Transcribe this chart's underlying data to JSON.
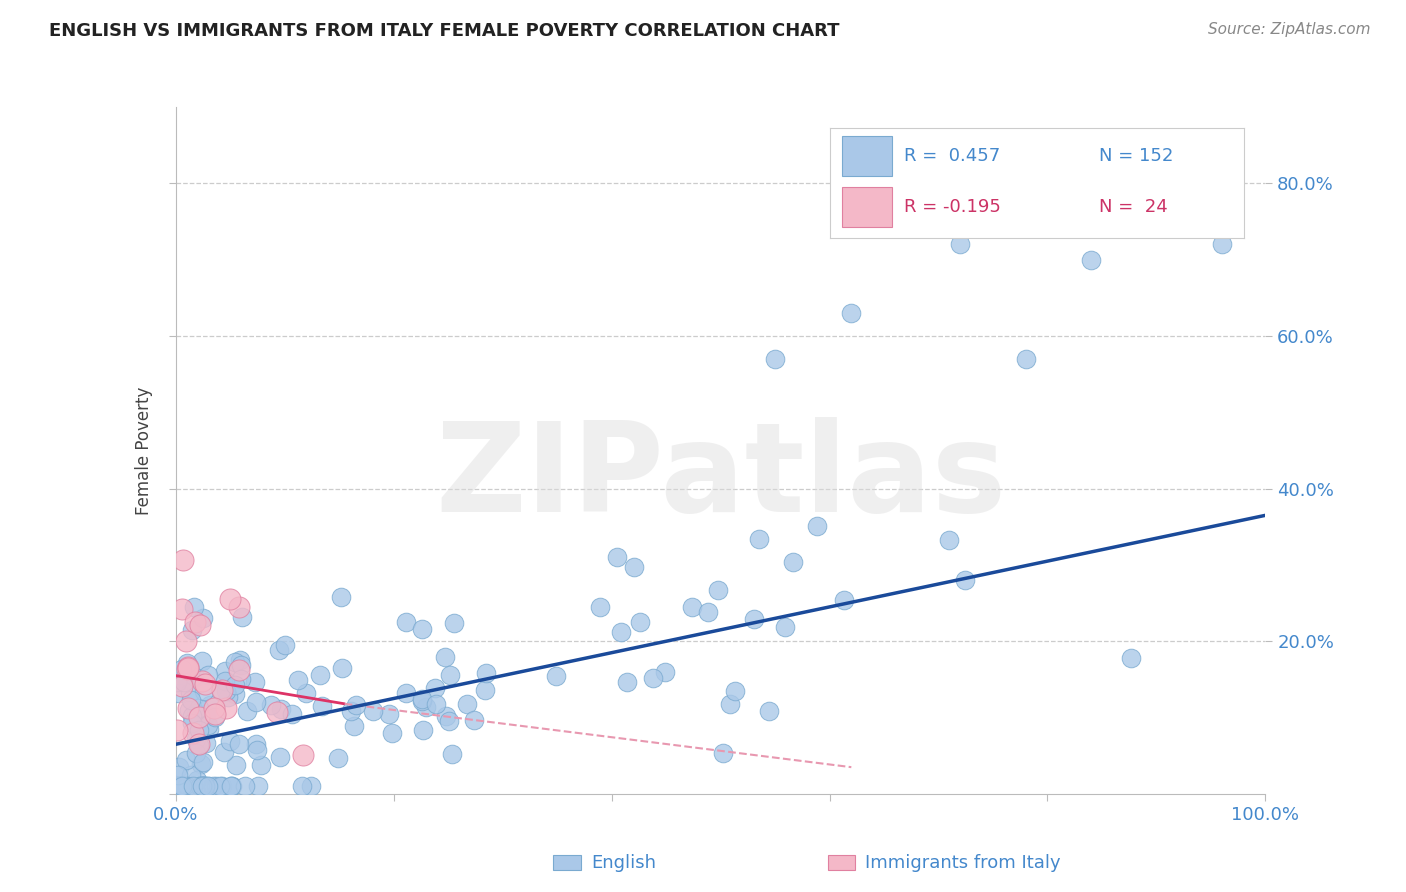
{
  "title": "ENGLISH VS IMMIGRANTS FROM ITALY FEMALE POVERTY CORRELATION CHART",
  "source": "Source: ZipAtlas.com",
  "ylabel": "Female Poverty",
  "xlim": [
    0.0,
    1.0
  ],
  "ylim": [
    0.0,
    0.9
  ],
  "bg_color": "#ffffff",
  "english_color": "#aac8e8",
  "english_edge_color": "#7aaad0",
  "italy_color": "#f4b8c8",
  "italy_edge_color": "#e080a0",
  "english_line_color": "#1a4a9a",
  "italy_solid_color": "#dd3366",
  "italy_dash_color": "#e898b0",
  "legend_r_english": "R =  0.457",
  "legend_n_english": "N = 152",
  "legend_r_italy": "R = -0.195",
  "legend_n_italy": "N =  24",
  "watermark_text": "ZIPatlas",
  "tick_color": "#4488cc",
  "grid_color": "#cccccc",
  "title_color": "#222222",
  "source_color": "#888888",
  "ylabel_color": "#444444"
}
